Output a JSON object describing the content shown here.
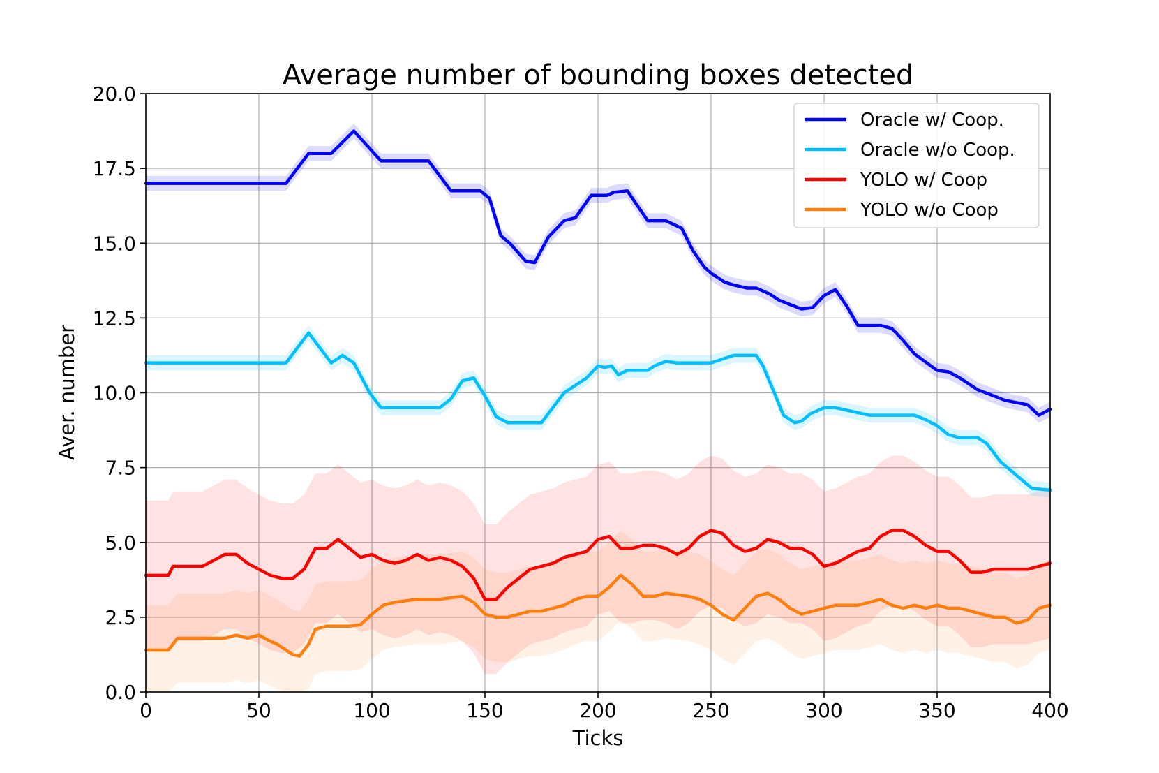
{
  "chart_data": {
    "type": "line",
    "title": "Average number of bounding boxes detected",
    "xlabel": "Ticks",
    "ylabel": "Aver. number",
    "xlim": [
      0,
      400
    ],
    "ylim": [
      0,
      20
    ],
    "xticks": [
      0,
      50,
      100,
      150,
      200,
      250,
      300,
      350,
      400
    ],
    "yticks": [
      0.0,
      2.5,
      5.0,
      7.5,
      10.0,
      12.5,
      15.0,
      17.5,
      20.0
    ],
    "xtick_labels": [
      "0",
      "50",
      "100",
      "150",
      "200",
      "250",
      "300",
      "350",
      "400"
    ],
    "ytick_labels": [
      "0.0",
      "2.5",
      "5.0",
      "7.5",
      "10.0",
      "12.5",
      "15.0",
      "17.5",
      "20.0"
    ],
    "grid": true,
    "legend_position": "top-right",
    "series": [
      {
        "name": "Oracle w/ Coop.",
        "color": "#0000ff",
        "band": 0.25,
        "x": [
          0,
          62,
          72,
          82,
          92,
          104,
          125,
          135,
          148,
          152,
          157,
          161,
          168,
          172,
          178,
          185,
          190,
          197,
          204,
          207,
          213,
          222,
          230,
          237,
          242,
          247,
          250,
          256,
          260,
          266,
          270,
          276,
          280,
          285,
          290,
          295,
          300,
          305,
          310,
          315,
          325,
          330,
          335,
          340,
          350,
          355,
          360,
          368,
          375,
          380,
          390,
          395,
          400
        ],
        "y": [
          17.0,
          17.0,
          18.0,
          18.0,
          18.75,
          17.75,
          17.75,
          16.75,
          16.75,
          16.5,
          15.25,
          15.0,
          14.4,
          14.35,
          15.2,
          15.75,
          15.85,
          16.6,
          16.6,
          16.7,
          16.75,
          15.75,
          15.75,
          15.5,
          14.75,
          14.2,
          14.0,
          13.7,
          13.6,
          13.5,
          13.5,
          13.3,
          13.1,
          12.95,
          12.8,
          12.85,
          13.25,
          13.45,
          12.9,
          12.25,
          12.25,
          12.15,
          11.75,
          11.3,
          10.75,
          10.7,
          10.5,
          10.1,
          9.9,
          9.75,
          9.6,
          9.25,
          9.45
        ]
      },
      {
        "name": "Oracle w/o Coop.",
        "color": "#00bfff",
        "band": 0.25,
        "x": [
          0,
          62,
          72,
          82,
          87,
          92,
          99,
          104,
          130,
          135,
          140,
          145,
          150,
          155,
          160,
          175,
          185,
          195,
          200,
          203,
          206,
          209,
          213,
          222,
          225,
          230,
          235,
          250,
          260,
          270,
          273,
          278,
          282,
          287,
          290,
          294,
          300,
          305,
          320,
          340,
          345,
          350,
          355,
          360,
          368,
          372,
          378,
          385,
          392,
          400
        ],
        "y": [
          11.0,
          11.0,
          12.0,
          11.0,
          11.25,
          11.0,
          10.0,
          9.5,
          9.5,
          9.8,
          10.4,
          10.5,
          9.9,
          9.2,
          9.0,
          9.0,
          10.0,
          10.5,
          10.9,
          10.85,
          10.9,
          10.6,
          10.75,
          10.75,
          10.9,
          11.05,
          11.0,
          11.0,
          11.25,
          11.25,
          10.9,
          10.0,
          9.25,
          9.0,
          9.05,
          9.3,
          9.5,
          9.5,
          9.25,
          9.25,
          9.1,
          8.9,
          8.6,
          8.5,
          8.5,
          8.3,
          7.7,
          7.25,
          6.8,
          6.75
        ]
      },
      {
        "name": "YOLO w/ Coop",
        "color": "#ff0000",
        "band": 2.5,
        "x": [
          0,
          10,
          12,
          25,
          30,
          35,
          40,
          45,
          50,
          55,
          60,
          65,
          70,
          75,
          80,
          85,
          90,
          95,
          100,
          105,
          110,
          115,
          120,
          125,
          130,
          135,
          140,
          145,
          150,
          155,
          160,
          165,
          170,
          175,
          180,
          185,
          190,
          195,
          200,
          205,
          210,
          215,
          220,
          225,
          230,
          235,
          240,
          245,
          250,
          255,
          260,
          265,
          270,
          275,
          280,
          285,
          290,
          295,
          300,
          305,
          310,
          315,
          320,
          325,
          330,
          335,
          340,
          345,
          350,
          355,
          360,
          365,
          370,
          375,
          380,
          385,
          390,
          395,
          400
        ],
        "y": [
          3.9,
          3.9,
          4.2,
          4.2,
          4.4,
          4.6,
          4.6,
          4.3,
          4.1,
          3.9,
          3.8,
          3.8,
          4.1,
          4.8,
          4.8,
          5.1,
          4.8,
          4.5,
          4.6,
          4.4,
          4.3,
          4.4,
          4.6,
          4.4,
          4.5,
          4.4,
          4.2,
          3.8,
          3.1,
          3.1,
          3.5,
          3.8,
          4.1,
          4.2,
          4.3,
          4.5,
          4.6,
          4.7,
          5.1,
          5.2,
          4.8,
          4.8,
          4.9,
          4.9,
          4.8,
          4.6,
          4.8,
          5.2,
          5.4,
          5.3,
          4.9,
          4.7,
          4.8,
          5.1,
          5.0,
          4.8,
          4.8,
          4.6,
          4.2,
          4.3,
          4.5,
          4.7,
          4.8,
          5.2,
          5.4,
          5.4,
          5.2,
          4.9,
          4.7,
          4.7,
          4.4,
          4.0,
          4.0,
          4.1,
          4.1,
          4.1,
          4.1,
          4.2,
          4.3
        ]
      },
      {
        "name": "YOLO w/o Coop",
        "color": "#ff7f0e",
        "band": 1.5,
        "x": [
          0,
          10,
          14,
          25,
          35,
          40,
          45,
          50,
          55,
          58,
          62,
          65,
          68,
          72,
          75,
          80,
          90,
          95,
          100,
          105,
          110,
          115,
          120,
          125,
          130,
          135,
          140,
          145,
          150,
          155,
          160,
          165,
          170,
          175,
          180,
          185,
          190,
          195,
          200,
          205,
          210,
          215,
          220,
          225,
          230,
          235,
          240,
          245,
          250,
          255,
          260,
          265,
          270,
          275,
          280,
          285,
          290,
          295,
          300,
          305,
          310,
          315,
          320,
          325,
          330,
          335,
          340,
          345,
          350,
          355,
          360,
          365,
          370,
          375,
          380,
          385,
          390,
          395,
          400
        ],
        "y": [
          1.4,
          1.4,
          1.8,
          1.8,
          1.8,
          1.9,
          1.8,
          1.9,
          1.7,
          1.6,
          1.4,
          1.25,
          1.2,
          1.6,
          2.1,
          2.2,
          2.2,
          2.25,
          2.6,
          2.9,
          3.0,
          3.05,
          3.1,
          3.1,
          3.1,
          3.15,
          3.2,
          3.0,
          2.6,
          2.5,
          2.5,
          2.6,
          2.7,
          2.7,
          2.8,
          2.9,
          3.1,
          3.2,
          3.2,
          3.5,
          3.9,
          3.6,
          3.2,
          3.2,
          3.3,
          3.25,
          3.2,
          3.1,
          2.9,
          2.6,
          2.4,
          2.8,
          3.2,
          3.3,
          3.1,
          2.8,
          2.6,
          2.7,
          2.8,
          2.9,
          2.9,
          2.9,
          3.0,
          3.1,
          2.9,
          2.8,
          2.9,
          2.8,
          2.9,
          2.8,
          2.8,
          2.7,
          2.6,
          2.5,
          2.5,
          2.3,
          2.4,
          2.8,
          2.9
        ]
      }
    ]
  }
}
